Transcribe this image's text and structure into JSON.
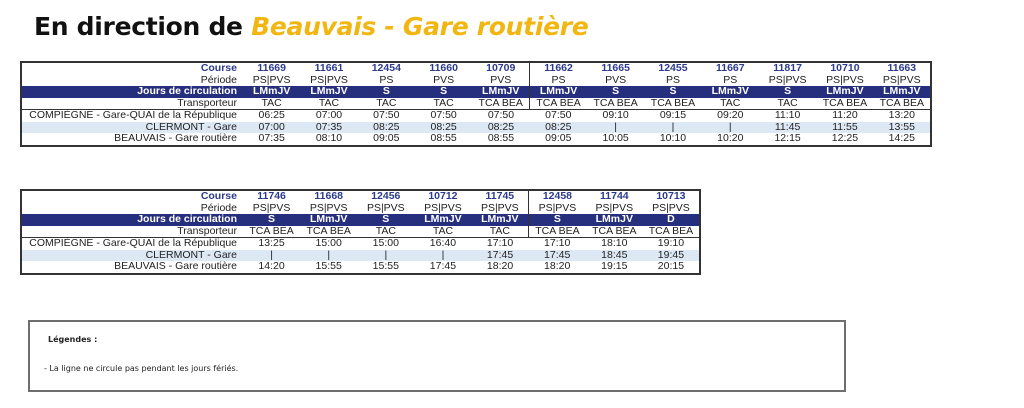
{
  "title": {
    "prefix": "En direction de",
    "destination": "Beauvais - Gare routière"
  },
  "labels": {
    "course": "Course",
    "periode": "Période",
    "jours": "Jours de circulation",
    "transporteur": "Transporteur"
  },
  "stops": [
    "COMPIÈGNE - Gare-QUAI de la République",
    "CLERMONT - Gare",
    "BEAUVAIS - Gare routière"
  ],
  "table1": {
    "courses": [
      {
        "course": "11669",
        "periode": "PS|PVS",
        "jours": "LMmJV",
        "transporteur": "TAC",
        "times": [
          "06:25",
          "07:00",
          "07:35"
        ]
      },
      {
        "course": "11661",
        "periode": "PS|PVS",
        "jours": "LMmJV",
        "transporteur": "TAC",
        "times": [
          "07:00",
          "07:35",
          "08:10"
        ]
      },
      {
        "course": "12454",
        "periode": "PS",
        "jours": "S",
        "transporteur": "TAC",
        "times": [
          "07:50",
          "08:25",
          "09:05"
        ]
      },
      {
        "course": "11660",
        "periode": "PVS",
        "jours": "S",
        "transporteur": "TAC",
        "times": [
          "07:50",
          "08:25",
          "08:55"
        ]
      },
      {
        "course": "10709",
        "periode": "PVS",
        "jours": "LMmJV",
        "transporteur": "TCA BEA",
        "times": [
          "07:50",
          "08:25",
          "08:55"
        ]
      },
      {
        "course": "11662",
        "periode": "PS",
        "jours": "LMmJV",
        "transporteur": "TCA BEA",
        "times": [
          "07:50",
          "08:25",
          "09:05"
        ]
      },
      {
        "course": "11665",
        "periode": "PVS",
        "jours": "S",
        "transporteur": "TCA BEA",
        "times": [
          "09:10",
          "|",
          "10:05"
        ]
      },
      {
        "course": "12455",
        "periode": "PS",
        "jours": "S",
        "transporteur": "TCA BEA",
        "times": [
          "09:15",
          "|",
          "10:10"
        ]
      },
      {
        "course": "11667",
        "periode": "PS",
        "jours": "LMmJV",
        "transporteur": "TAC",
        "times": [
          "09:20",
          "|",
          "10:20"
        ]
      },
      {
        "course": "11817",
        "periode": "PS|PVS",
        "jours": "S",
        "transporteur": "TAC",
        "times": [
          "11:10",
          "11:45",
          "12:15"
        ]
      },
      {
        "course": "10710",
        "periode": "PS|PVS",
        "jours": "LMmJV",
        "transporteur": "TCA BEA",
        "times": [
          "11:20",
          "11:55",
          "12:25"
        ]
      },
      {
        "course": "11663",
        "periode": "PS|PVS",
        "jours": "LMmJV",
        "transporteur": "TCA BEA",
        "times": [
          "13:20",
          "13:55",
          "14:25"
        ]
      }
    ]
  },
  "table2": {
    "courses": [
      {
        "course": "11746",
        "periode": "PS|PVS",
        "jours": "S",
        "transporteur": "TCA BEA",
        "times": [
          "13:25",
          "|",
          "14:20"
        ]
      },
      {
        "course": "11668",
        "periode": "PS|PVS",
        "jours": "LMmJV",
        "transporteur": "TCA BEA",
        "times": [
          "15:00",
          "|",
          "15:55"
        ]
      },
      {
        "course": "12456",
        "periode": "PS|PVS",
        "jours": "S",
        "transporteur": "TAC",
        "times": [
          "15:00",
          "|",
          "15:55"
        ]
      },
      {
        "course": "10712",
        "periode": "PS|PVS",
        "jours": "LMmJV",
        "transporteur": "TAC",
        "times": [
          "16:40",
          "|",
          "17:45"
        ]
      },
      {
        "course": "11745",
        "periode": "PS|PVS",
        "jours": "LMmJV",
        "transporteur": "TAC",
        "times": [
          "17:10",
          "17:45",
          "18:20"
        ]
      },
      {
        "course": "12458",
        "periode": "PS|PVS",
        "jours": "S",
        "transporteur": "TCA BEA",
        "times": [
          "17:10",
          "17:45",
          "18:20"
        ]
      },
      {
        "course": "11744",
        "periode": "PS|PVS",
        "jours": "LMmJV",
        "transporteur": "TCA BEA",
        "times": [
          "18:10",
          "18:45",
          "19:15"
        ]
      },
      {
        "course": "10713",
        "periode": "PS|PVS",
        "jours": "D",
        "transporteur": "TCA BEA",
        "times": [
          "19:10",
          "19:45",
          "20:15"
        ]
      }
    ]
  },
  "legend": {
    "title": "Légendes :",
    "items": [
      "- La ligne ne circule pas pendant les jours fériés."
    ]
  },
  "colors": {
    "accent": "#f2b612",
    "header_band": "#262f7e",
    "course_text": "#2b3a8c",
    "alt_row": "#dde8f5"
  }
}
